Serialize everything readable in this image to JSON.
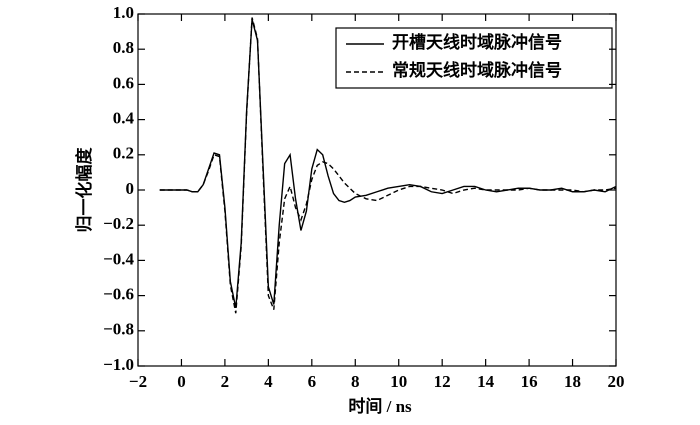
{
  "chart_data": {
    "type": "line",
    "xlabel": "时间 / ns",
    "ylabel": "归一化幅度",
    "xlim": [
      -2,
      20
    ],
    "ylim": [
      -1,
      1
    ],
    "xticks": [
      {
        "value": -2,
        "label": "−2"
      },
      0,
      2,
      4,
      6,
      8,
      10,
      12,
      14,
      16,
      18,
      20
    ],
    "yticks": [
      {
        "value": -1,
        "label": "−1.0"
      },
      {
        "value": -0.8,
        "label": "−0.8"
      },
      {
        "value": -0.6,
        "label": "−0.6"
      },
      {
        "value": -0.4,
        "label": "−0.4"
      },
      {
        "value": -0.2,
        "label": "−0.2"
      },
      0,
      0.2,
      0.4,
      0.6,
      0.8,
      {
        "value": 1,
        "label": "1.0"
      }
    ],
    "legend": "upper right",
    "x": [
      -1,
      -0.75,
      -0.5,
      -0.25,
      0,
      0.25,
      0.5,
      0.75,
      1,
      1.25,
      1.5,
      1.75,
      2,
      2.25,
      2.5,
      2.75,
      3,
      3.25,
      3.5,
      3.75,
      4,
      4.25,
      4.5,
      4.75,
      5,
      5.25,
      5.5,
      5.75,
      6,
      6.25,
      6.5,
      6.75,
      7,
      7.25,
      7.5,
      7.75,
      8,
      8.5,
      9,
      9.5,
      10,
      10.5,
      11,
      11.5,
      12,
      12.5,
      13,
      13.5,
      14,
      14.5,
      15,
      15.5,
      16,
      16.5,
      17,
      17.5,
      18,
      18.5,
      19,
      19.5,
      20
    ],
    "series": [
      {
        "name": "开槽天线时域脉冲信号",
        "color": "#000000",
        "dash": "solid",
        "values": [
          0,
          0,
          0,
          0,
          0,
          0,
          -0.01,
          -0.01,
          0.03,
          0.12,
          0.21,
          0.2,
          -0.1,
          -0.52,
          -0.67,
          -0.3,
          0.45,
          0.97,
          0.85,
          0.15,
          -0.55,
          -0.65,
          -0.2,
          0.15,
          0.2,
          -0.05,
          -0.23,
          -0.12,
          0.12,
          0.23,
          0.2,
          0.08,
          -0.02,
          -0.06,
          -0.07,
          -0.06,
          -0.04,
          -0.03,
          -0.01,
          0.01,
          0.02,
          0.03,
          0.02,
          -0.01,
          -0.02,
          0,
          0.02,
          0.02,
          0,
          -0.01,
          0,
          0.01,
          0.01,
          0,
          0,
          0.01,
          -0.01,
          -0.01,
          0,
          -0.01,
          0.02
        ]
      },
      {
        "name": "常规天线时域脉冲信号",
        "color": "#000000",
        "dash": "dashed",
        "values": [
          0,
          0,
          0,
          0,
          0,
          0,
          -0.01,
          -0.01,
          0.03,
          0.11,
          0.2,
          0.19,
          -0.12,
          -0.54,
          -0.7,
          -0.32,
          0.44,
          0.98,
          0.86,
          0.12,
          -0.6,
          -0.68,
          -0.3,
          -0.05,
          0.02,
          -0.1,
          -0.17,
          -0.08,
          0.06,
          0.14,
          0.16,
          0.15,
          0.12,
          0.08,
          0.04,
          0.01,
          -0.02,
          -0.05,
          -0.06,
          -0.03,
          0,
          0.02,
          0.02,
          0.01,
          0,
          -0.02,
          0,
          0.01,
          0,
          0,
          0,
          0,
          0.01,
          0,
          0,
          0,
          0,
          -0.01,
          0,
          0,
          0.01
        ]
      }
    ]
  }
}
